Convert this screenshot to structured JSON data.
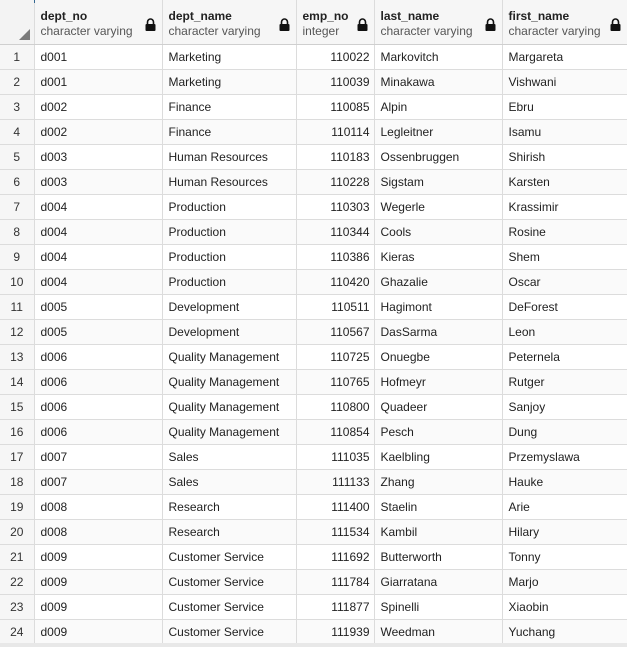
{
  "columns": [
    {
      "name": "dept_no",
      "type": "character varying",
      "locked": true
    },
    {
      "name": "dept_name",
      "type": "character varying",
      "locked": true
    },
    {
      "name": "emp_no",
      "type": "integer",
      "locked": true
    },
    {
      "name": "last_name",
      "type": "character varying",
      "locked": true
    },
    {
      "name": "first_name",
      "type": "character varying",
      "locked": true
    }
  ],
  "rows": [
    {
      "n": "1",
      "dept_no": "d001",
      "dept_name": "Marketing",
      "emp_no": "110022",
      "last_name": "Markovitch",
      "first_name": "Margareta"
    },
    {
      "n": "2",
      "dept_no": "d001",
      "dept_name": "Marketing",
      "emp_no": "110039",
      "last_name": "Minakawa",
      "first_name": "Vishwani"
    },
    {
      "n": "3",
      "dept_no": "d002",
      "dept_name": "Finance",
      "emp_no": "110085",
      "last_name": "Alpin",
      "first_name": "Ebru"
    },
    {
      "n": "4",
      "dept_no": "d002",
      "dept_name": "Finance",
      "emp_no": "110114",
      "last_name": "Legleitner",
      "first_name": "Isamu"
    },
    {
      "n": "5",
      "dept_no": "d003",
      "dept_name": "Human Resources",
      "emp_no": "110183",
      "last_name": "Ossenbruggen",
      "first_name": "Shirish"
    },
    {
      "n": "6",
      "dept_no": "d003",
      "dept_name": "Human Resources",
      "emp_no": "110228",
      "last_name": "Sigstam",
      "first_name": "Karsten"
    },
    {
      "n": "7",
      "dept_no": "d004",
      "dept_name": "Production",
      "emp_no": "110303",
      "last_name": "Wegerle",
      "first_name": "Krassimir"
    },
    {
      "n": "8",
      "dept_no": "d004",
      "dept_name": "Production",
      "emp_no": "110344",
      "last_name": "Cools",
      "first_name": "Rosine"
    },
    {
      "n": "9",
      "dept_no": "d004",
      "dept_name": "Production",
      "emp_no": "110386",
      "last_name": "Kieras",
      "first_name": "Shem"
    },
    {
      "n": "10",
      "dept_no": "d004",
      "dept_name": "Production",
      "emp_no": "110420",
      "last_name": "Ghazalie",
      "first_name": "Oscar"
    },
    {
      "n": "11",
      "dept_no": "d005",
      "dept_name": "Development",
      "emp_no": "110511",
      "last_name": "Hagimont",
      "first_name": "DeForest"
    },
    {
      "n": "12",
      "dept_no": "d005",
      "dept_name": "Development",
      "emp_no": "110567",
      "last_name": "DasSarma",
      "first_name": "Leon"
    },
    {
      "n": "13",
      "dept_no": "d006",
      "dept_name": "Quality Management",
      "emp_no": "110725",
      "last_name": "Onuegbe",
      "first_name": "Peternela"
    },
    {
      "n": "14",
      "dept_no": "d006",
      "dept_name": "Quality Management",
      "emp_no": "110765",
      "last_name": "Hofmeyr",
      "first_name": "Rutger"
    },
    {
      "n": "15",
      "dept_no": "d006",
      "dept_name": "Quality Management",
      "emp_no": "110800",
      "last_name": "Quadeer",
      "first_name": "Sanjoy"
    },
    {
      "n": "16",
      "dept_no": "d006",
      "dept_name": "Quality Management",
      "emp_no": "110854",
      "last_name": "Pesch",
      "first_name": "Dung"
    },
    {
      "n": "17",
      "dept_no": "d007",
      "dept_name": "Sales",
      "emp_no": "111035",
      "last_name": "Kaelbling",
      "first_name": "Przemyslawa"
    },
    {
      "n": "18",
      "dept_no": "d007",
      "dept_name": "Sales",
      "emp_no": "111133",
      "last_name": "Zhang",
      "first_name": "Hauke"
    },
    {
      "n": "19",
      "dept_no": "d008",
      "dept_name": "Research",
      "emp_no": "111400",
      "last_name": "Staelin",
      "first_name": "Arie"
    },
    {
      "n": "20",
      "dept_no": "d008",
      "dept_name": "Research",
      "emp_no": "111534",
      "last_name": "Kambil",
      "first_name": "Hilary"
    },
    {
      "n": "21",
      "dept_no": "d009",
      "dept_name": "Customer Service",
      "emp_no": "111692",
      "last_name": "Butterworth",
      "first_name": "Tonny"
    },
    {
      "n": "22",
      "dept_no": "d009",
      "dept_name": "Customer Service",
      "emp_no": "111784",
      "last_name": "Giarratana",
      "first_name": "Marjo"
    },
    {
      "n": "23",
      "dept_no": "d009",
      "dept_name": "Customer Service",
      "emp_no": "111877",
      "last_name": "Spinelli",
      "first_name": "Xiaobin"
    },
    {
      "n": "24",
      "dept_no": "d009",
      "dept_name": "Customer Service",
      "emp_no": "111939",
      "last_name": "Weedman",
      "first_name": "Yuchang"
    }
  ],
  "icons": {
    "lock": "lock-icon",
    "select_all": "select-all-icon"
  },
  "colors": {
    "accent": "#326690",
    "header_bg": "#f6f6f6",
    "grid_line": "#dcdcdc"
  }
}
